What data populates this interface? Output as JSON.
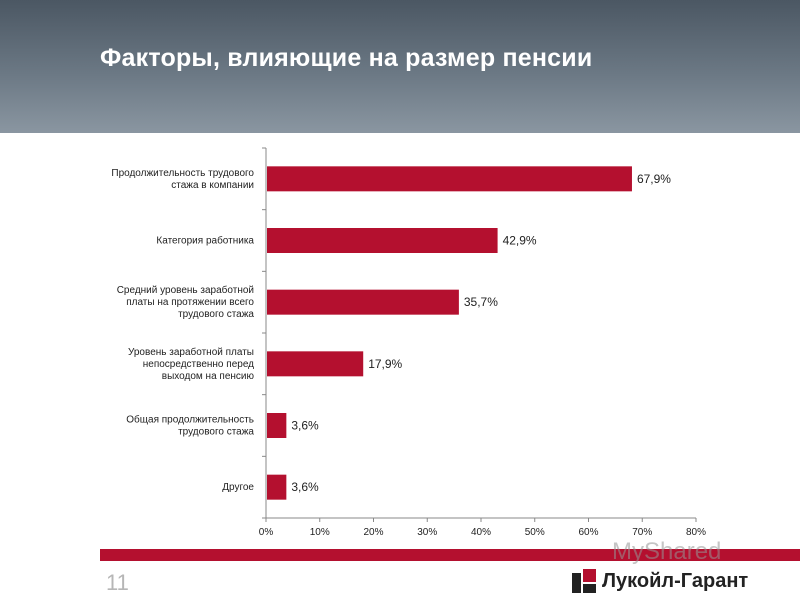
{
  "header": {
    "title": "Факторы, влияющие на размер пенсии"
  },
  "colors": {
    "bar": "#b4102f",
    "header_top": "#4b5763",
    "header_bottom": "#8a96a1"
  },
  "chart_data": {
    "type": "bar",
    "orientation": "horizontal",
    "categories": [
      [
        "Продолжительность трудового",
        "стажа в компании"
      ],
      [
        "Категория работника"
      ],
      [
        "Средний уровень заработной",
        "платы на протяжении всего",
        "трудового стажа"
      ],
      [
        "Уровень заработной платы",
        "непосредственно перед",
        "выходом на пенсию"
      ],
      [
        "Общая продолжительность",
        "трудового стажа"
      ],
      [
        "Другое"
      ]
    ],
    "values": [
      67.9,
      42.9,
      35.7,
      17.9,
      3.6,
      3.6
    ],
    "value_labels": [
      "67,9%",
      "42,9%",
      "35,7%",
      "17,9%",
      "3,6%",
      "3,6%"
    ],
    "xlim": [
      0,
      80
    ],
    "xticks": [
      "0%",
      "10%",
      "20%",
      "30%",
      "40%",
      "50%",
      "60%",
      "70%",
      "80%"
    ],
    "grid": false
  },
  "footer": {
    "page_number": "11",
    "watermark": "MyShared",
    "logo_text": "Лукойл-Гарант"
  }
}
